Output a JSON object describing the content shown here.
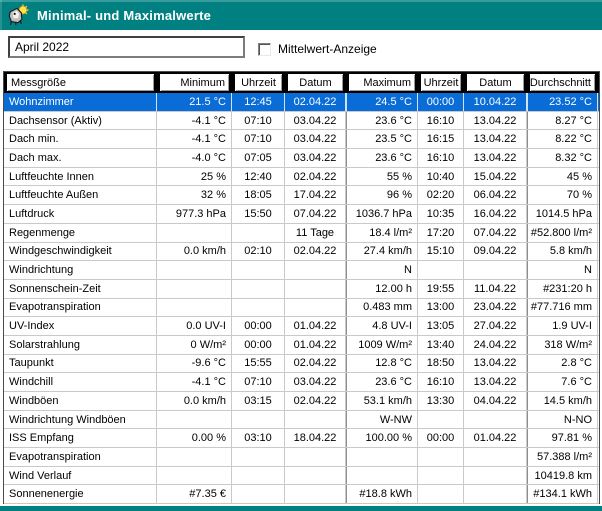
{
  "window": {
    "title": "Minimal- und Maximalwerte"
  },
  "controls": {
    "period_value": "April 2022",
    "checkbox_label": "Mittelwert-Anzeige",
    "checkbox_checked": false
  },
  "colors": {
    "titlebar_teal": "#008080",
    "selection_blue": "#0a6cd6",
    "bottom_strip": "#008080"
  },
  "icons": {
    "app_icon": "weather-station-with-sun"
  },
  "table": {
    "columns": [
      {
        "label": "Messgröße",
        "align": "left"
      },
      {
        "label": "Minimum",
        "align": "right"
      },
      {
        "label": "Uhrzeit",
        "align": "center"
      },
      {
        "label": "Datum",
        "align": "center"
      },
      {
        "label": "Maximum",
        "align": "right"
      },
      {
        "label": "Uhrzeit",
        "align": "center"
      },
      {
        "label": "Datum",
        "align": "center"
      },
      {
        "label": "Durchschnitt",
        "align": "right"
      }
    ],
    "rows": [
      {
        "selected": true,
        "cells": [
          "Wohnzimmer",
          "21.5 °C",
          "12:45",
          "02.04.22",
          "24.5 °C",
          "00:00",
          "10.04.22",
          "23.52 °C"
        ]
      },
      {
        "selected": false,
        "cells": [
          "Dachsensor (Aktiv)",
          "-4.1 °C",
          "07:10",
          "03.04.22",
          "23.6 °C",
          "16:10",
          "13.04.22",
          "8.27 °C"
        ]
      },
      {
        "selected": false,
        "cells": [
          "Dach min.",
          "-4.1 °C",
          "07:10",
          "03.04.22",
          "23.5 °C",
          "16:15",
          "13.04.22",
          "8.22 °C"
        ]
      },
      {
        "selected": false,
        "cells": [
          "Dach max.",
          "-4.0 °C",
          "07:05",
          "03.04.22",
          "23.6 °C",
          "16:10",
          "13.04.22",
          "8.32 °C"
        ]
      },
      {
        "selected": false,
        "cells": [
          "Luftfeuchte Innen",
          "25 %",
          "12:40",
          "02.04.22",
          "55 %",
          "10:40",
          "15.04.22",
          "45 %"
        ]
      },
      {
        "selected": false,
        "cells": [
          "Luftfeuchte Außen",
          "32 %",
          "18:05",
          "17.04.22",
          "96 %",
          "02:20",
          "06.04.22",
          "70 %"
        ]
      },
      {
        "selected": false,
        "cells": [
          "Luftdruck",
          "977.3 hPa",
          "15:50",
          "07.04.22",
          "1036.7 hPa",
          "10:35",
          "16.04.22",
          "1014.5 hPa"
        ]
      },
      {
        "selected": false,
        "cells": [
          "Regenmenge",
          "",
          "",
          "11 Tage",
          "18.4 l/m²",
          "17:20",
          "07.04.22",
          "#52.800 l/m²"
        ]
      },
      {
        "selected": false,
        "cells": [
          "Windgeschwindigkeit",
          "0.0 km/h",
          "02:10",
          "02.04.22",
          "27.4 km/h",
          "15:10",
          "09.04.22",
          "5.8 km/h"
        ]
      },
      {
        "selected": false,
        "cells": [
          "Windrichtung",
          "",
          "",
          "",
          "N",
          "",
          "",
          "N"
        ]
      },
      {
        "selected": false,
        "cells": [
          "Sonnenschein-Zeit",
          "",
          "",
          "",
          "12.00 h",
          "19:55",
          "11.04.22",
          "#231:20 h"
        ]
      },
      {
        "selected": false,
        "cells": [
          "Evapotranspiration",
          "",
          "",
          "",
          "0.483 mm",
          "13:00",
          "23.04.22",
          "#77.716 mm"
        ]
      },
      {
        "selected": false,
        "cells": [
          "UV-Index",
          "0.0 UV-I",
          "00:00",
          "01.04.22",
          "4.8 UV-I",
          "13:05",
          "27.04.22",
          "1.9 UV-I"
        ]
      },
      {
        "selected": false,
        "cells": [
          "Solarstrahlung",
          "0 W/m²",
          "00:00",
          "01.04.22",
          "1009 W/m²",
          "13:40",
          "24.04.22",
          "318 W/m²"
        ]
      },
      {
        "selected": false,
        "cells": [
          "Taupunkt",
          "-9.6 °C",
          "15:55",
          "02.04.22",
          "12.8 °C",
          "18:50",
          "13.04.22",
          "2.8 °C"
        ]
      },
      {
        "selected": false,
        "cells": [
          "Windchill",
          "-4.1 °C",
          "07:10",
          "03.04.22",
          "23.6 °C",
          "16:10",
          "13.04.22",
          "7.6 °C"
        ]
      },
      {
        "selected": false,
        "cells": [
          "Windböen",
          "0.0 km/h",
          "03:15",
          "02.04.22",
          "53.1 km/h",
          "13:30",
          "04.04.22",
          "14.5 km/h"
        ]
      },
      {
        "selected": false,
        "cells": [
          "Windrichtung Windböen",
          "",
          "",
          "",
          "W-NW",
          "",
          "",
          "N-NO"
        ]
      },
      {
        "selected": false,
        "cells": [
          "ISS Empfang",
          "0.00 %",
          "03:10",
          "18.04.22",
          "100.00 %",
          "00:00",
          "01.04.22",
          "97.81 %"
        ]
      },
      {
        "selected": false,
        "cells": [
          "Evapotranspiration",
          "",
          "",
          "",
          "",
          "",
          "",
          "57.388 l/m²"
        ]
      },
      {
        "selected": false,
        "cells": [
          "Wind Verlauf",
          "",
          "",
          "",
          "",
          "",
          "",
          "10419.8 km"
        ]
      },
      {
        "selected": false,
        "cells": [
          "Sonnenenergie",
          "#7.35 €",
          "",
          "",
          "#18.8 kWh",
          "",
          "",
          "#134.1 kWh"
        ]
      }
    ]
  }
}
